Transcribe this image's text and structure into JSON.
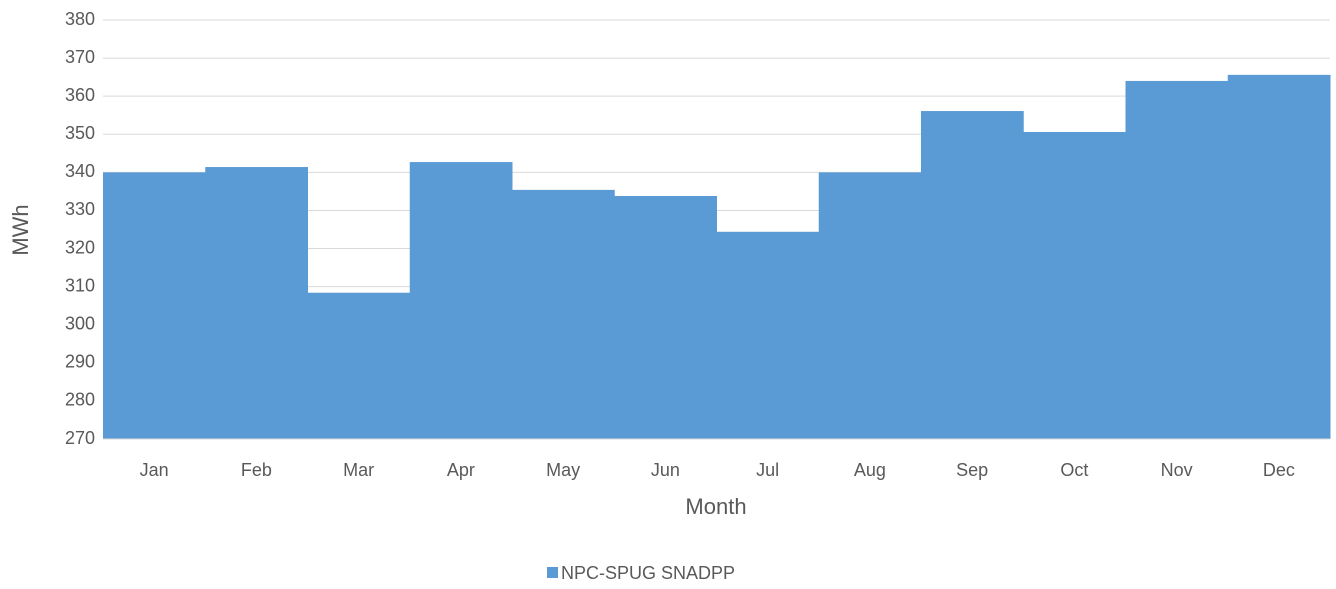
{
  "chart_data": {
    "type": "bar",
    "x_label": "Month",
    "y_label": "MWh",
    "categories": [
      "Jan",
      "Feb",
      "Mar",
      "Apr",
      "May",
      "Jun",
      "Jul",
      "Aug",
      "Sep",
      "Oct",
      "Nov",
      "Dec"
    ],
    "series": [
      {
        "name": "NPC-SPUG SNADPP",
        "color": "#5b9bd5",
        "values": [
          340,
          341.4,
          308.4,
          342.7,
          335.4,
          333.8,
          324.4,
          340,
          356.1,
          350.6,
          364,
          365.6
        ]
      }
    ],
    "ylim": [
      270,
      380
    ],
    "yticks": [
      270,
      280,
      290,
      300,
      310,
      320,
      330,
      340,
      350,
      360,
      370,
      380
    ],
    "grid": true,
    "legend": "bottom"
  }
}
